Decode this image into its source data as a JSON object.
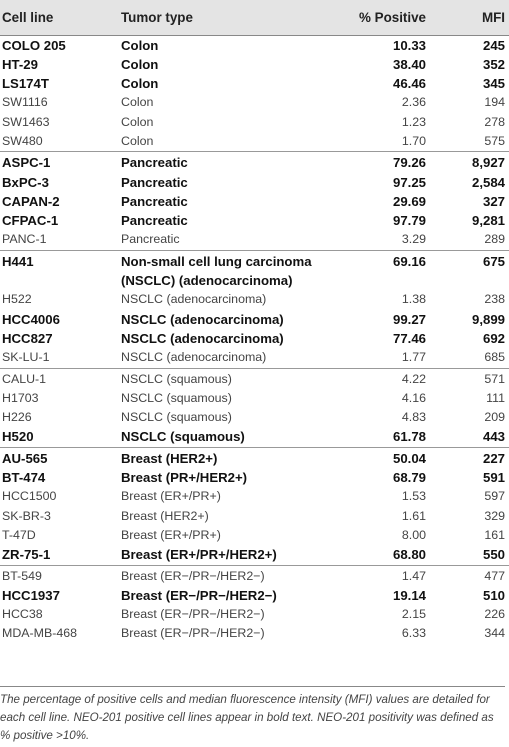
{
  "headers": {
    "cell_line": "Cell line",
    "tumor_type": "Tumor type",
    "pct_positive": "% Positive",
    "mfi": "MFI"
  },
  "rows": [
    {
      "cell": "COLO 205",
      "tumor": "Colon",
      "pct": "10.33",
      "mfi": "245",
      "positive": true,
      "group_start": false
    },
    {
      "cell": "HT-29",
      "tumor": "Colon",
      "pct": "38.40",
      "mfi": "352",
      "positive": true,
      "group_start": false
    },
    {
      "cell": "LS174T",
      "tumor": "Colon",
      "pct": "46.46",
      "mfi": "345",
      "positive": true,
      "group_start": false
    },
    {
      "cell": "SW1116",
      "tumor": "Colon",
      "pct": "2.36",
      "mfi": "194",
      "positive": false,
      "group_start": false
    },
    {
      "cell": "SW1463",
      "tumor": "Colon",
      "pct": "1.23",
      "mfi": "278",
      "positive": false,
      "group_start": false
    },
    {
      "cell": "SW480",
      "tumor": "Colon",
      "pct": "1.70",
      "mfi": "575",
      "positive": false,
      "group_start": false
    },
    {
      "cell": "ASPC-1",
      "tumor": "Pancreatic",
      "pct": "79.26",
      "mfi": "8,927",
      "positive": true,
      "group_start": true
    },
    {
      "cell": "BxPC-3",
      "tumor": "Pancreatic",
      "pct": "97.25",
      "mfi": "2,584",
      "positive": true,
      "group_start": false
    },
    {
      "cell": "CAPAN-2",
      "tumor": "Pancreatic",
      "pct": "29.69",
      "mfi": "327",
      "positive": true,
      "group_start": false
    },
    {
      "cell": "CFPAC-1",
      "tumor": "Pancreatic",
      "pct": "97.79",
      "mfi": "9,281",
      "positive": true,
      "group_start": false
    },
    {
      "cell": "PANC-1",
      "tumor": "Pancreatic",
      "pct": "3.29",
      "mfi": "289",
      "positive": false,
      "group_start": false
    },
    {
      "cell": "H441",
      "tumor": "Non-small cell lung carcinoma (NSCLC) (adenocarcinoma)",
      "pct": "69.16",
      "mfi": "675",
      "positive": true,
      "group_start": true,
      "two_line": true
    },
    {
      "cell": "H522",
      "tumor": "NSCLC (adenocarcinoma)",
      "pct": "1.38",
      "mfi": "238",
      "positive": false,
      "group_start": false
    },
    {
      "cell": "HCC4006",
      "tumor": "NSCLC (adenocarcinoma)",
      "pct": "99.27",
      "mfi": "9,899",
      "positive": true,
      "group_start": false
    },
    {
      "cell": "HCC827",
      "tumor": "NSCLC (adenocarcinoma)",
      "pct": "77.46",
      "mfi": "692",
      "positive": true,
      "group_start": false
    },
    {
      "cell": "SK-LU-1",
      "tumor": "NSCLC (adenocarcinoma)",
      "pct": "1.77",
      "mfi": "685",
      "positive": false,
      "group_start": false
    },
    {
      "cell": "CALU-1",
      "tumor": "NSCLC (squamous)",
      "pct": "4.22",
      "mfi": "571",
      "positive": false,
      "group_start": true
    },
    {
      "cell": "H1703",
      "tumor": "NSCLC (squamous)",
      "pct": "4.16",
      "mfi": "111",
      "positive": false,
      "group_start": false
    },
    {
      "cell": "H226",
      "tumor": "NSCLC (squamous)",
      "pct": "4.83",
      "mfi": "209",
      "positive": false,
      "group_start": false
    },
    {
      "cell": "H520",
      "tumor": "NSCLC (squamous)",
      "pct": "61.78",
      "mfi": "443",
      "positive": true,
      "group_start": false
    },
    {
      "cell": "AU-565",
      "tumor": "Breast (HER2+)",
      "pct": "50.04",
      "mfi": "227",
      "positive": true,
      "group_start": true
    },
    {
      "cell": "BT-474",
      "tumor": "Breast (PR+/HER2+)",
      "pct": "68.79",
      "mfi": "591",
      "positive": true,
      "group_start": false
    },
    {
      "cell": "HCC1500",
      "tumor": "Breast (ER+/PR+)",
      "pct": "1.53",
      "mfi": "597",
      "positive": false,
      "group_start": false
    },
    {
      "cell": "SK-BR-3",
      "tumor": "Breast (HER2+)",
      "pct": "1.61",
      "mfi": "329",
      "positive": false,
      "group_start": false
    },
    {
      "cell": "T-47D",
      "tumor": "Breast (ER+/PR+)",
      "pct": "8.00",
      "mfi": "161",
      "positive": false,
      "group_start": false
    },
    {
      "cell": "ZR-75-1",
      "tumor": "Breast (ER+/PR+/HER2+)",
      "pct": "68.80",
      "mfi": "550",
      "positive": true,
      "group_start": false
    },
    {
      "cell": "BT-549",
      "tumor": "Breast (ER−/PR−/HER2−)",
      "pct": "1.47",
      "mfi": "477",
      "positive": false,
      "group_start": true
    },
    {
      "cell": "HCC1937",
      "tumor": "Breast (ER−/PR−/HER2−)",
      "pct": "19.14",
      "mfi": "510",
      "positive": true,
      "group_start": false
    },
    {
      "cell": "HCC38",
      "tumor": "Breast (ER−/PR−/HER2−)",
      "pct": "2.15",
      "mfi": "226",
      "positive": false,
      "group_start": false
    },
    {
      "cell": "MDA-MB-468",
      "tumor": "Breast (ER−/PR−/HER2−)",
      "pct": "6.33",
      "mfi": "344",
      "positive": false,
      "group_start": false
    }
  ],
  "footnote": "The percentage of positive cells and median fluorescence intensity (MFI) values are detailed for each cell line. NEO-201 positive cell lines appear in bold text. NEO-201 positivity was defined as % positive >10%."
}
